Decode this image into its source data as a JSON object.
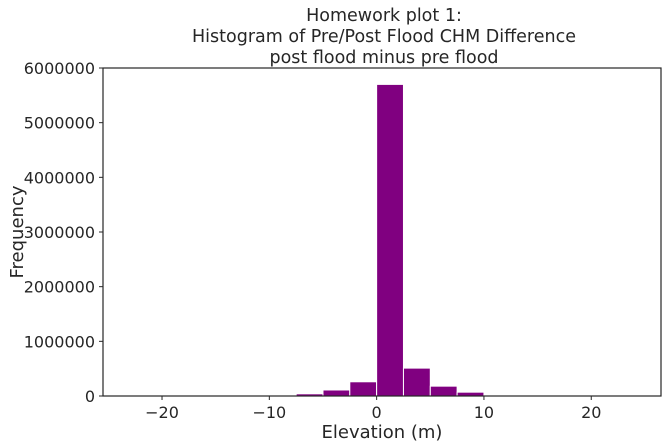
{
  "chart_data": {
    "type": "bar",
    "title_lines": [
      "Homework plot 1:",
      "Histogram of Pre/Post Flood CHM Difference",
      "post flood minus pre flood"
    ],
    "xlabel": "Elevation (m)",
    "ylabel": "Frequency",
    "xlim": [
      -25.5,
      26.5
    ],
    "ylim": [
      0,
      6000000
    ],
    "x_ticks": [
      -20,
      -10,
      0,
      10,
      20
    ],
    "x_tick_labels": [
      "−20",
      "−10",
      "0",
      "10",
      "20"
    ],
    "y_ticks": [
      0,
      1000000,
      2000000,
      3000000,
      4000000,
      5000000,
      6000000
    ],
    "y_tick_labels": [
      "0",
      "1000000",
      "2000000",
      "3000000",
      "4000000",
      "5000000",
      "6000000"
    ],
    "grid": false,
    "bar_color": "#800080",
    "bin_edges": [
      -25,
      -22.5,
      -20,
      -17.5,
      -15,
      -12.5,
      -10,
      -7.5,
      -5,
      -2.5,
      0,
      2.5,
      5,
      7.5,
      10,
      12.5,
      15,
      17.5,
      20,
      22.5,
      25
    ],
    "values": [
      500,
      1000,
      1500,
      2000,
      3000,
      5000,
      10000,
      40000,
      110000,
      260000,
      5700000,
      510000,
      180000,
      70000,
      15000,
      4000,
      2000,
      1000,
      500,
      300
    ]
  }
}
